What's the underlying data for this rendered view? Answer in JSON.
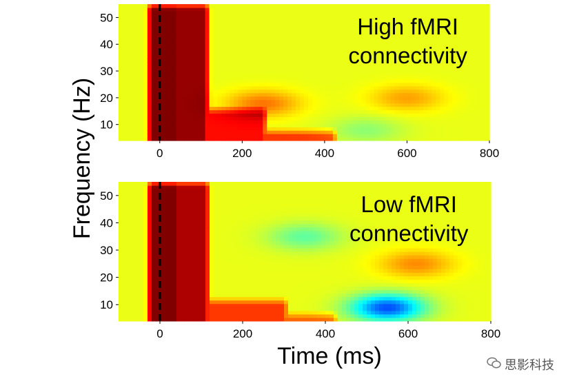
{
  "chart_data": [
    {
      "type": "heatmap",
      "annotation": [
        "High fMRI",
        "connectivity"
      ],
      "xlabel": "",
      "ylabel": "",
      "xlim": [
        -100,
        800
      ],
      "ylim": [
        4,
        55
      ],
      "x_ticks": [
        "0",
        "200",
        "400",
        "600",
        "800"
      ],
      "y_ticks": [
        "10",
        "20",
        "30",
        "40",
        "50"
      ],
      "stimulus_line_x": 0,
      "bands": [
        {
          "t0": -20,
          "t1": 40,
          "f0": 4,
          "f1": 55,
          "value": 1.0
        },
        {
          "t0": 40,
          "t1": 110,
          "f0": 4,
          "f1": 55,
          "value": 0.95
        },
        {
          "t0": 110,
          "t1": 250,
          "f0": 4,
          "f1": 16,
          "value": 0.7
        },
        {
          "t0": 250,
          "t1": 420,
          "f0": 4,
          "f1": 8,
          "value": 0.6
        }
      ],
      "blobs": [
        {
          "t": 250,
          "f": 18,
          "value": 0.35
        },
        {
          "t": 600,
          "f": 20,
          "value": 0.25
        },
        {
          "t": 500,
          "f": 8,
          "value": -0.2
        }
      ]
    },
    {
      "type": "heatmap",
      "annotation": [
        "Low fMRI",
        "connectivity"
      ],
      "xlabel": "Time (ms)",
      "ylabel": "Frequency (Hz)",
      "xlim": [
        -100,
        800
      ],
      "ylim": [
        4,
        55
      ],
      "x_ticks": [
        "0",
        "200",
        "400",
        "600",
        "800"
      ],
      "y_ticks": [
        "10",
        "20",
        "30",
        "40",
        "50"
      ],
      "stimulus_line_x": 0,
      "bands": [
        {
          "t0": -20,
          "t1": 40,
          "f0": 4,
          "f1": 55,
          "value": 1.0
        },
        {
          "t0": 40,
          "t1": 110,
          "f0": 4,
          "f1": 55,
          "value": 0.9
        },
        {
          "t0": 110,
          "t1": 300,
          "f0": 4,
          "f1": 12,
          "value": 0.6
        },
        {
          "t0": 300,
          "t1": 420,
          "f0": 4,
          "f1": 7,
          "value": 0.5
        }
      ],
      "blobs": [
        {
          "t": 550,
          "f": 9,
          "value": -0.9
        },
        {
          "t": 620,
          "f": 25,
          "value": 0.3
        },
        {
          "t": 350,
          "f": 35,
          "value": -0.3
        }
      ]
    }
  ],
  "watermark": "思影科技",
  "colors": {
    "background": "#ffffff",
    "axis": "#000000",
    "tick_text": "#000000",
    "dashed_line": "#000000"
  }
}
